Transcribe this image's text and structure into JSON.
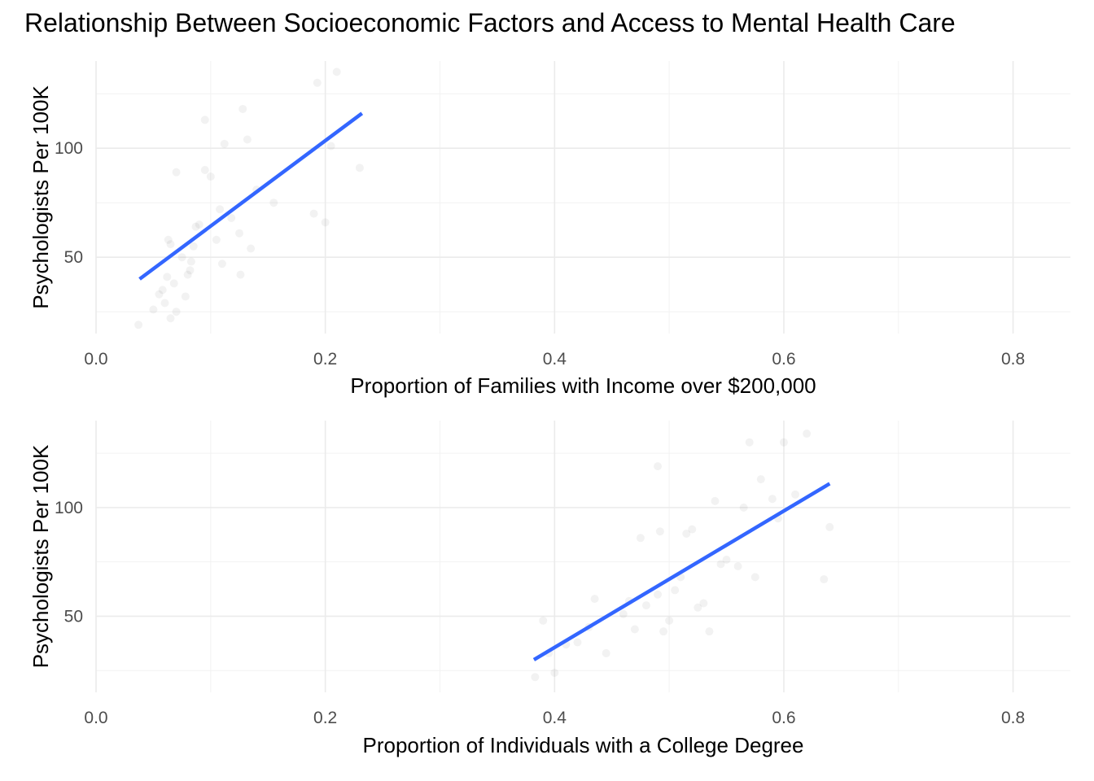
{
  "figure": {
    "title": "Relationship Between Socioeconomic Factors and Access to Mental Health Care"
  },
  "chart_data": [
    {
      "type": "scatter",
      "title": "",
      "xlabel": "Proportion of Families with Income over $200,000",
      "ylabel": "Psychologists Per 100K",
      "xlim": [
        0.0,
        0.85
      ],
      "ylim": [
        15,
        140
      ],
      "x_ticks": [
        0.0,
        0.2,
        0.4,
        0.6,
        0.8
      ],
      "x_tick_labels": [
        "0.0",
        "0.2",
        "0.4",
        "0.6",
        "0.8"
      ],
      "y_ticks": [
        50,
        100
      ],
      "y_tick_labels": [
        "50",
        "100"
      ],
      "grid": true,
      "point_opacity": 0.05,
      "points": [
        {
          "x": 0.037,
          "y": 19
        },
        {
          "x": 0.05,
          "y": 26
        },
        {
          "x": 0.055,
          "y": 33
        },
        {
          "x": 0.058,
          "y": 35
        },
        {
          "x": 0.06,
          "y": 29
        },
        {
          "x": 0.062,
          "y": 41
        },
        {
          "x": 0.063,
          "y": 58
        },
        {
          "x": 0.065,
          "y": 56
        },
        {
          "x": 0.068,
          "y": 38
        },
        {
          "x": 0.065,
          "y": 22
        },
        {
          "x": 0.07,
          "y": 25
        },
        {
          "x": 0.07,
          "y": 89
        },
        {
          "x": 0.075,
          "y": 50
        },
        {
          "x": 0.078,
          "y": 32
        },
        {
          "x": 0.08,
          "y": 42
        },
        {
          "x": 0.082,
          "y": 44
        },
        {
          "x": 0.083,
          "y": 48
        },
        {
          "x": 0.085,
          "y": 55
        },
        {
          "x": 0.087,
          "y": 64
        },
        {
          "x": 0.09,
          "y": 65
        },
        {
          "x": 0.095,
          "y": 90
        },
        {
          "x": 0.095,
          "y": 113
        },
        {
          "x": 0.1,
          "y": 87
        },
        {
          "x": 0.105,
          "y": 58
        },
        {
          "x": 0.108,
          "y": 72
        },
        {
          "x": 0.11,
          "y": 47
        },
        {
          "x": 0.112,
          "y": 102
        },
        {
          "x": 0.118,
          "y": 68
        },
        {
          "x": 0.125,
          "y": 61
        },
        {
          "x": 0.126,
          "y": 42
        },
        {
          "x": 0.128,
          "y": 118
        },
        {
          "x": 0.132,
          "y": 104
        },
        {
          "x": 0.135,
          "y": 54
        },
        {
          "x": 0.14,
          "y": 81
        },
        {
          "x": 0.155,
          "y": 75
        },
        {
          "x": 0.19,
          "y": 70
        },
        {
          "x": 0.193,
          "y": 130
        },
        {
          "x": 0.2,
          "y": 66
        },
        {
          "x": 0.205,
          "y": 101
        },
        {
          "x": 0.21,
          "y": 135
        },
        {
          "x": 0.23,
          "y": 91
        }
      ],
      "fit_line": {
        "x": [
          0.038,
          0.232
        ],
        "y": [
          40,
          116
        ],
        "color": "#3366ff"
      },
      "point_color": "#000000"
    },
    {
      "type": "scatter",
      "title": "",
      "xlabel": "Proportion of Individuals with a College Degree",
      "ylabel": "Psychologists Per 100K",
      "xlim": [
        0.0,
        0.85
      ],
      "ylim": [
        15,
        140
      ],
      "x_ticks": [
        0.0,
        0.2,
        0.4,
        0.6,
        0.8
      ],
      "x_tick_labels": [
        "0.0",
        "0.2",
        "0.4",
        "0.6",
        "0.8"
      ],
      "y_ticks": [
        50,
        100
      ],
      "y_tick_labels": [
        "50",
        "100"
      ],
      "grid": true,
      "point_opacity": 0.05,
      "points": [
        {
          "x": 0.383,
          "y": 22
        },
        {
          "x": 0.39,
          "y": 48
        },
        {
          "x": 0.395,
          "y": 33
        },
        {
          "x": 0.4,
          "y": 24
        },
        {
          "x": 0.41,
          "y": 37
        },
        {
          "x": 0.42,
          "y": 38
        },
        {
          "x": 0.43,
          "y": 45
        },
        {
          "x": 0.435,
          "y": 58
        },
        {
          "x": 0.445,
          "y": 33
        },
        {
          "x": 0.46,
          "y": 51
        },
        {
          "x": 0.465,
          "y": 57
        },
        {
          "x": 0.47,
          "y": 44
        },
        {
          "x": 0.475,
          "y": 86
        },
        {
          "x": 0.48,
          "y": 55
        },
        {
          "x": 0.49,
          "y": 60
        },
        {
          "x": 0.49,
          "y": 119
        },
        {
          "x": 0.492,
          "y": 89
        },
        {
          "x": 0.495,
          "y": 43
        },
        {
          "x": 0.5,
          "y": 48
        },
        {
          "x": 0.505,
          "y": 62
        },
        {
          "x": 0.51,
          "y": 68
        },
        {
          "x": 0.515,
          "y": 88
        },
        {
          "x": 0.52,
          "y": 90
        },
        {
          "x": 0.525,
          "y": 54
        },
        {
          "x": 0.53,
          "y": 56
        },
        {
          "x": 0.535,
          "y": 43
        },
        {
          "x": 0.54,
          "y": 103
        },
        {
          "x": 0.545,
          "y": 74
        },
        {
          "x": 0.55,
          "y": 76
        },
        {
          "x": 0.56,
          "y": 73
        },
        {
          "x": 0.565,
          "y": 100
        },
        {
          "x": 0.57,
          "y": 130
        },
        {
          "x": 0.575,
          "y": 68
        },
        {
          "x": 0.58,
          "y": 113
        },
        {
          "x": 0.59,
          "y": 104
        },
        {
          "x": 0.595,
          "y": 95
        },
        {
          "x": 0.6,
          "y": 130
        },
        {
          "x": 0.61,
          "y": 106
        },
        {
          "x": 0.62,
          "y": 134
        },
        {
          "x": 0.635,
          "y": 67
        },
        {
          "x": 0.64,
          "y": 91
        }
      ],
      "fit_line": {
        "x": [
          0.382,
          0.64
        ],
        "y": [
          30,
          111
        ],
        "color": "#3366ff"
      },
      "point_color": "#000000"
    }
  ]
}
